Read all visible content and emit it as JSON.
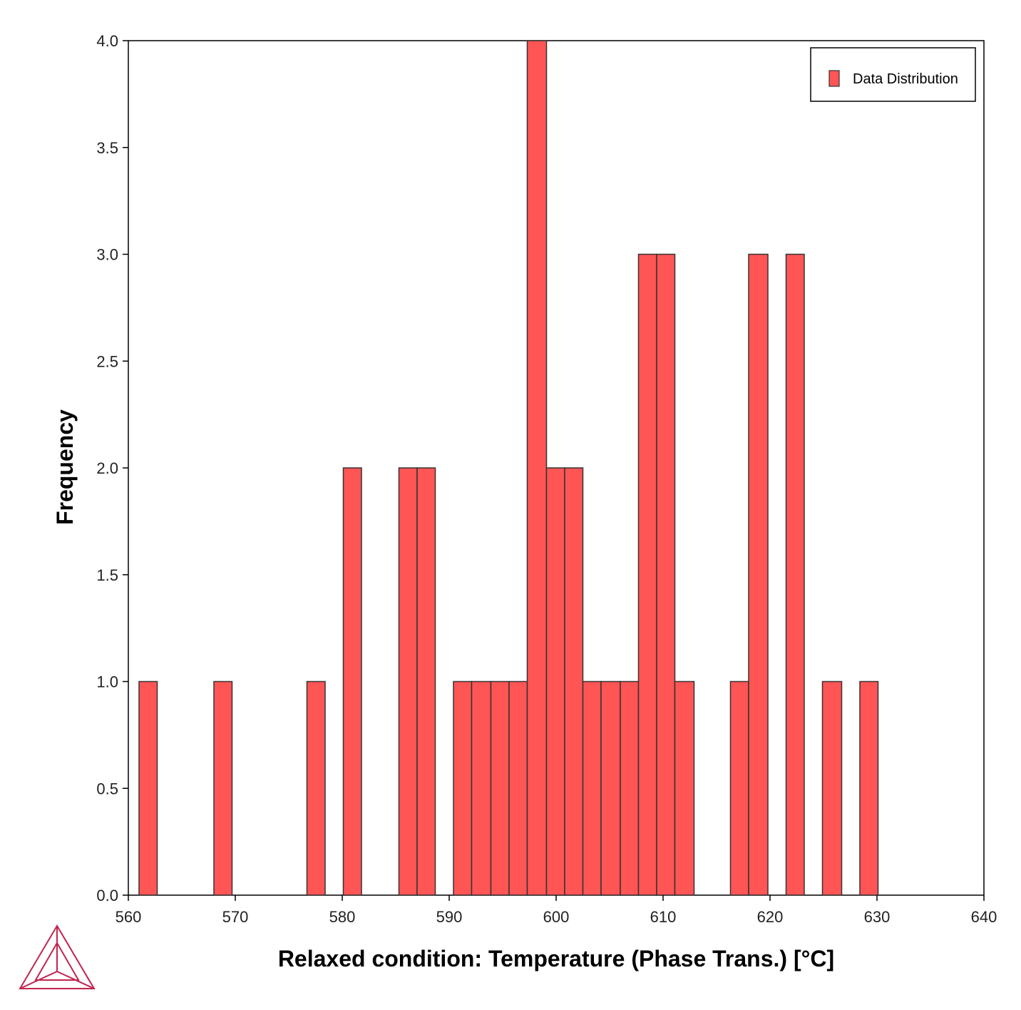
{
  "chart_data": {
    "type": "bar",
    "subtype": "histogram",
    "xlabel": "Relaxed condition: Temperature (Phase Trans.) [°C]",
    "ylabel": "Frequency",
    "xlim": [
      560,
      640
    ],
    "ylim": [
      0,
      4
    ],
    "xticks": [
      "560",
      "570",
      "580",
      "590",
      "600",
      "610",
      "620",
      "630",
      "640"
    ],
    "yticks": [
      "0.0",
      "0.5",
      "1.0",
      "1.5",
      "2.0",
      "2.5",
      "3.0",
      "3.5",
      "4.0"
    ],
    "bin_width": 1.72,
    "bars": [
      {
        "x0": 561.0,
        "x1": 562.7,
        "value": 1
      },
      {
        "x0": 568.0,
        "x1": 569.7,
        "value": 1
      },
      {
        "x0": 576.7,
        "x1": 578.4,
        "value": 1
      },
      {
        "x0": 580.1,
        "x1": 581.8,
        "value": 2
      },
      {
        "x0": 585.3,
        "x1": 587.0,
        "value": 2
      },
      {
        "x0": 587.0,
        "x1": 588.7,
        "value": 2
      },
      {
        "x0": 590.4,
        "x1": 592.1,
        "value": 1
      },
      {
        "x0": 592.1,
        "x1": 593.9,
        "value": 1
      },
      {
        "x0": 593.9,
        "x1": 595.6,
        "value": 1
      },
      {
        "x0": 595.6,
        "x1": 597.3,
        "value": 1
      },
      {
        "x0": 597.3,
        "x1": 599.1,
        "value": 4
      },
      {
        "x0": 599.1,
        "x1": 600.8,
        "value": 2
      },
      {
        "x0": 600.8,
        "x1": 602.5,
        "value": 2
      },
      {
        "x0": 602.5,
        "x1": 604.2,
        "value": 1
      },
      {
        "x0": 604.2,
        "x1": 606.0,
        "value": 1
      },
      {
        "x0": 606.0,
        "x1": 607.7,
        "value": 1
      },
      {
        "x0": 607.7,
        "x1": 609.4,
        "value": 3
      },
      {
        "x0": 609.4,
        "x1": 611.1,
        "value": 3
      },
      {
        "x0": 611.1,
        "x1": 612.9,
        "value": 1
      },
      {
        "x0": 616.3,
        "x1": 618.0,
        "value": 1
      },
      {
        "x0": 618.0,
        "x1": 619.8,
        "value": 3
      },
      {
        "x0": 621.5,
        "x1": 623.2,
        "value": 3
      },
      {
        "x0": 624.9,
        "x1": 626.7,
        "value": 1
      },
      {
        "x0": 628.4,
        "x1": 630.1,
        "value": 1
      }
    ],
    "series": [
      {
        "name": "Data Distribution",
        "color": "#ff5555"
      }
    ],
    "legend_position": "top-right",
    "grid": false,
    "bar_color": "#ff5555",
    "bar_edge_color": "#333333"
  },
  "logo": {
    "name": "thermo-calc-logo-icon",
    "color": "#c0264f"
  }
}
